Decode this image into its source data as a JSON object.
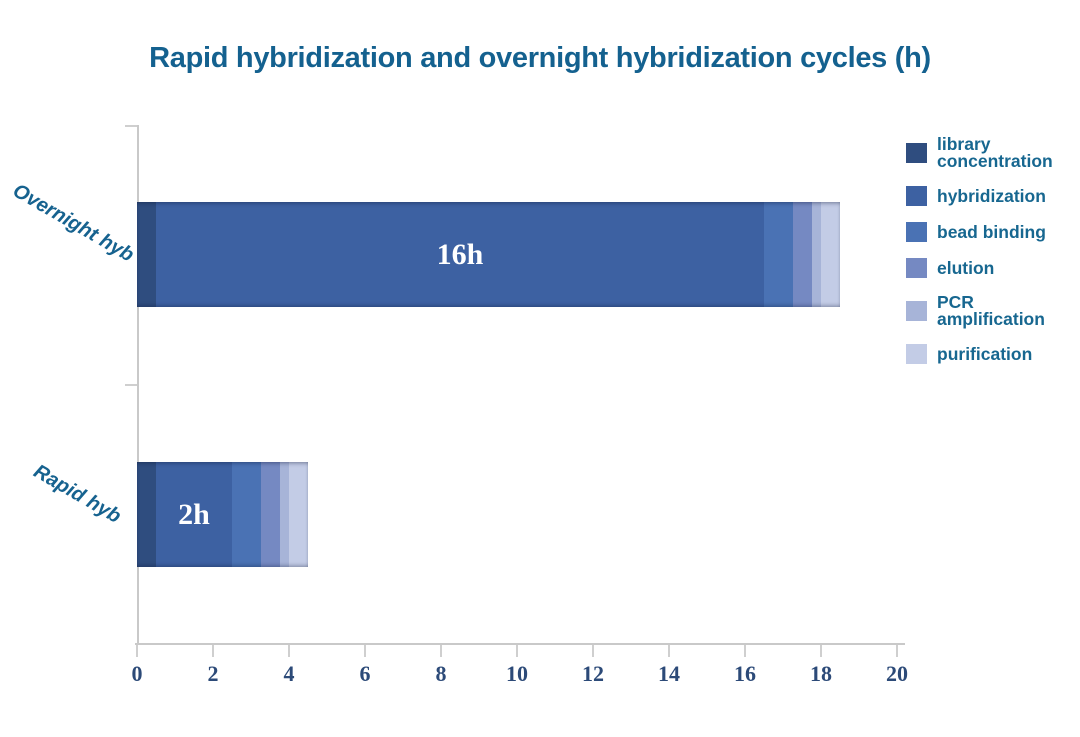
{
  "chart_data": {
    "type": "bar",
    "orientation": "horizontal",
    "stacked": true,
    "title": "Rapid hybridization and overnight hybridization cycles (h)",
    "categories": [
      "Overnight hyb",
      "Rapid hyb"
    ],
    "series": [
      {
        "name": "library concentration",
        "color": "#2f4d7f",
        "values": [
          0.5,
          0.5
        ]
      },
      {
        "name": "hybridization",
        "color": "#3d61a2",
        "values": [
          16,
          2
        ]
      },
      {
        "name": "bead binding",
        "color": "#4a72b4",
        "values": [
          0.75,
          0.75
        ]
      },
      {
        "name": "elution",
        "color": "#7589c2",
        "values": [
          0.5,
          0.5
        ]
      },
      {
        "name": "PCR amplification",
        "color": "#a7b4d8",
        "values": [
          0.25,
          0.25
        ]
      },
      {
        "name": "purification",
        "color": "#c3cce6",
        "values": [
          0.5,
          0.5
        ]
      }
    ],
    "bar_labels": [
      "16h",
      "2h"
    ],
    "bar_label_series": "hybridization",
    "xlabel": "",
    "ylabel": "",
    "xlim": [
      0,
      20
    ],
    "x_ticks": [
      0,
      2,
      4,
      6,
      8,
      10,
      12,
      14,
      16,
      18,
      20
    ],
    "grid": false,
    "legend_position": "right"
  },
  "colors": {
    "title_text": "#14618f",
    "legend_text": "#176790",
    "category_text": "#16628f",
    "axis_tick_text": "#2c4a78",
    "axis_line": "#c9c9c9",
    "bar_value_text": "#ffffff",
    "background": "#ffffff"
  }
}
